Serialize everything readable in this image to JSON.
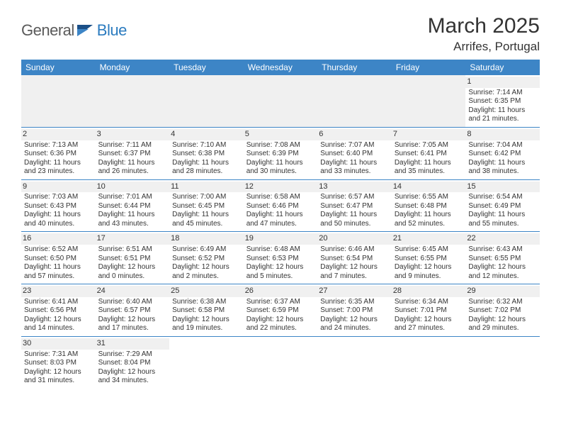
{
  "brand": {
    "part1": "General",
    "part2": "Blue"
  },
  "title": {
    "month": "March 2025",
    "location": "Arrifes, Portugal"
  },
  "colors": {
    "header_bg": "#3d85c6",
    "header_fg": "#ffffff",
    "daynum_bg": "#f0f0f0",
    "rule": "#3d85c6",
    "brand_gray": "#5a5a5a",
    "brand_blue": "#2b7bbf"
  },
  "dayHeaders": [
    "Sunday",
    "Monday",
    "Tuesday",
    "Wednesday",
    "Thursday",
    "Friday",
    "Saturday"
  ],
  "weeks": [
    [
      null,
      null,
      null,
      null,
      null,
      null,
      {
        "n": "1",
        "sunrise": "Sunrise: 7:14 AM",
        "sunset": "Sunset: 6:35 PM",
        "daylight": "Daylight: 11 hours and 21 minutes."
      }
    ],
    [
      {
        "n": "2",
        "sunrise": "Sunrise: 7:13 AM",
        "sunset": "Sunset: 6:36 PM",
        "daylight": "Daylight: 11 hours and 23 minutes."
      },
      {
        "n": "3",
        "sunrise": "Sunrise: 7:11 AM",
        "sunset": "Sunset: 6:37 PM",
        "daylight": "Daylight: 11 hours and 26 minutes."
      },
      {
        "n": "4",
        "sunrise": "Sunrise: 7:10 AM",
        "sunset": "Sunset: 6:38 PM",
        "daylight": "Daylight: 11 hours and 28 minutes."
      },
      {
        "n": "5",
        "sunrise": "Sunrise: 7:08 AM",
        "sunset": "Sunset: 6:39 PM",
        "daylight": "Daylight: 11 hours and 30 minutes."
      },
      {
        "n": "6",
        "sunrise": "Sunrise: 7:07 AM",
        "sunset": "Sunset: 6:40 PM",
        "daylight": "Daylight: 11 hours and 33 minutes."
      },
      {
        "n": "7",
        "sunrise": "Sunrise: 7:05 AM",
        "sunset": "Sunset: 6:41 PM",
        "daylight": "Daylight: 11 hours and 35 minutes."
      },
      {
        "n": "8",
        "sunrise": "Sunrise: 7:04 AM",
        "sunset": "Sunset: 6:42 PM",
        "daylight": "Daylight: 11 hours and 38 minutes."
      }
    ],
    [
      {
        "n": "9",
        "sunrise": "Sunrise: 7:03 AM",
        "sunset": "Sunset: 6:43 PM",
        "daylight": "Daylight: 11 hours and 40 minutes."
      },
      {
        "n": "10",
        "sunrise": "Sunrise: 7:01 AM",
        "sunset": "Sunset: 6:44 PM",
        "daylight": "Daylight: 11 hours and 43 minutes."
      },
      {
        "n": "11",
        "sunrise": "Sunrise: 7:00 AM",
        "sunset": "Sunset: 6:45 PM",
        "daylight": "Daylight: 11 hours and 45 minutes."
      },
      {
        "n": "12",
        "sunrise": "Sunrise: 6:58 AM",
        "sunset": "Sunset: 6:46 PM",
        "daylight": "Daylight: 11 hours and 47 minutes."
      },
      {
        "n": "13",
        "sunrise": "Sunrise: 6:57 AM",
        "sunset": "Sunset: 6:47 PM",
        "daylight": "Daylight: 11 hours and 50 minutes."
      },
      {
        "n": "14",
        "sunrise": "Sunrise: 6:55 AM",
        "sunset": "Sunset: 6:48 PM",
        "daylight": "Daylight: 11 hours and 52 minutes."
      },
      {
        "n": "15",
        "sunrise": "Sunrise: 6:54 AM",
        "sunset": "Sunset: 6:49 PM",
        "daylight": "Daylight: 11 hours and 55 minutes."
      }
    ],
    [
      {
        "n": "16",
        "sunrise": "Sunrise: 6:52 AM",
        "sunset": "Sunset: 6:50 PM",
        "daylight": "Daylight: 11 hours and 57 minutes."
      },
      {
        "n": "17",
        "sunrise": "Sunrise: 6:51 AM",
        "sunset": "Sunset: 6:51 PM",
        "daylight": "Daylight: 12 hours and 0 minutes."
      },
      {
        "n": "18",
        "sunrise": "Sunrise: 6:49 AM",
        "sunset": "Sunset: 6:52 PM",
        "daylight": "Daylight: 12 hours and 2 minutes."
      },
      {
        "n": "19",
        "sunrise": "Sunrise: 6:48 AM",
        "sunset": "Sunset: 6:53 PM",
        "daylight": "Daylight: 12 hours and 5 minutes."
      },
      {
        "n": "20",
        "sunrise": "Sunrise: 6:46 AM",
        "sunset": "Sunset: 6:54 PM",
        "daylight": "Daylight: 12 hours and 7 minutes."
      },
      {
        "n": "21",
        "sunrise": "Sunrise: 6:45 AM",
        "sunset": "Sunset: 6:55 PM",
        "daylight": "Daylight: 12 hours and 9 minutes."
      },
      {
        "n": "22",
        "sunrise": "Sunrise: 6:43 AM",
        "sunset": "Sunset: 6:55 PM",
        "daylight": "Daylight: 12 hours and 12 minutes."
      }
    ],
    [
      {
        "n": "23",
        "sunrise": "Sunrise: 6:41 AM",
        "sunset": "Sunset: 6:56 PM",
        "daylight": "Daylight: 12 hours and 14 minutes."
      },
      {
        "n": "24",
        "sunrise": "Sunrise: 6:40 AM",
        "sunset": "Sunset: 6:57 PM",
        "daylight": "Daylight: 12 hours and 17 minutes."
      },
      {
        "n": "25",
        "sunrise": "Sunrise: 6:38 AM",
        "sunset": "Sunset: 6:58 PM",
        "daylight": "Daylight: 12 hours and 19 minutes."
      },
      {
        "n": "26",
        "sunrise": "Sunrise: 6:37 AM",
        "sunset": "Sunset: 6:59 PM",
        "daylight": "Daylight: 12 hours and 22 minutes."
      },
      {
        "n": "27",
        "sunrise": "Sunrise: 6:35 AM",
        "sunset": "Sunset: 7:00 PM",
        "daylight": "Daylight: 12 hours and 24 minutes."
      },
      {
        "n": "28",
        "sunrise": "Sunrise: 6:34 AM",
        "sunset": "Sunset: 7:01 PM",
        "daylight": "Daylight: 12 hours and 27 minutes."
      },
      {
        "n": "29",
        "sunrise": "Sunrise: 6:32 AM",
        "sunset": "Sunset: 7:02 PM",
        "daylight": "Daylight: 12 hours and 29 minutes."
      }
    ],
    [
      {
        "n": "30",
        "sunrise": "Sunrise: 7:31 AM",
        "sunset": "Sunset: 8:03 PM",
        "daylight": "Daylight: 12 hours and 31 minutes."
      },
      {
        "n": "31",
        "sunrise": "Sunrise: 7:29 AM",
        "sunset": "Sunset: 8:04 PM",
        "daylight": "Daylight: 12 hours and 34 minutes."
      },
      null,
      null,
      null,
      null,
      null
    ]
  ]
}
